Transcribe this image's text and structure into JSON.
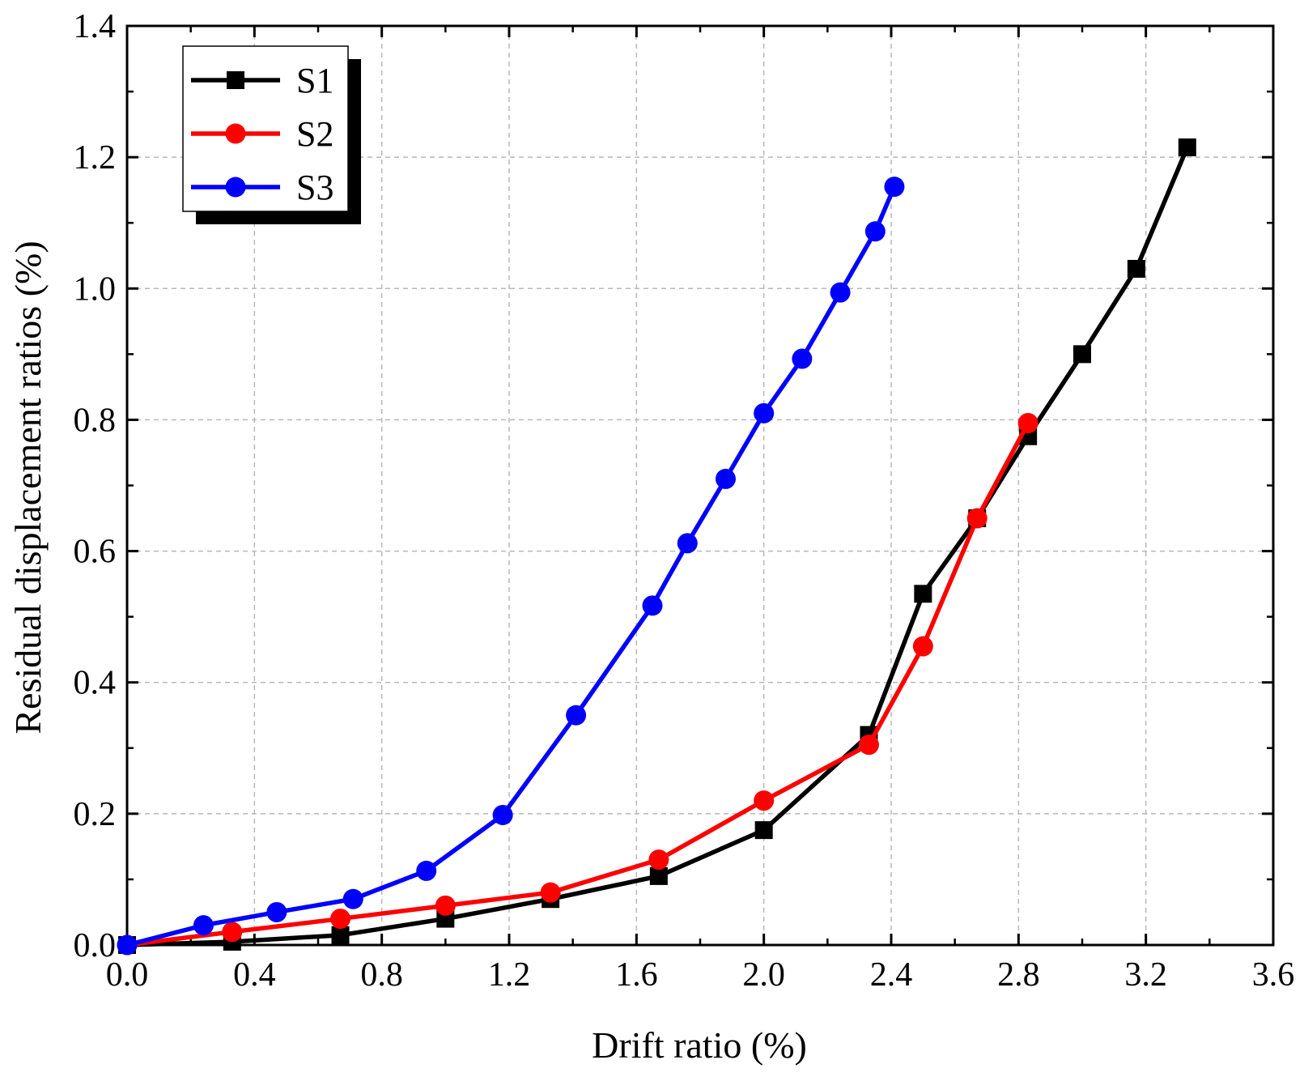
{
  "chart_data": {
    "type": "line",
    "title": "",
    "xlabel": "Drift ratio (%)",
    "ylabel": "Residual displacement ratios (%)",
    "xlim": [
      0.0,
      3.6
    ],
    "ylim": [
      0.0,
      1.4
    ],
    "xticks": [
      "0.0",
      "0.4",
      "0.8",
      "1.2",
      "1.6",
      "2.0",
      "2.4",
      "2.8",
      "3.2",
      "3.6"
    ],
    "yticks": [
      "0.0",
      "0.2",
      "0.4",
      "0.6",
      "0.8",
      "1.0",
      "1.2",
      "1.4"
    ],
    "grid": true,
    "legend_position": "top-left",
    "series": [
      {
        "name": "S1",
        "color": "#000000",
        "marker": "square",
        "points": [
          [
            0.0,
            0.0
          ],
          [
            0.33,
            0.005
          ],
          [
            0.67,
            0.015
          ],
          [
            1.0,
            0.04
          ],
          [
            1.33,
            0.07
          ],
          [
            1.67,
            0.105
          ],
          [
            2.0,
            0.175
          ],
          [
            2.33,
            0.32
          ],
          [
            2.5,
            0.535
          ],
          [
            2.67,
            0.65
          ],
          [
            2.83,
            0.775
          ],
          [
            3.0,
            0.9
          ],
          [
            3.17,
            1.03
          ],
          [
            3.33,
            1.215
          ]
        ]
      },
      {
        "name": "S2",
        "color": "#ff0000",
        "marker": "circle",
        "points": [
          [
            0.0,
            0.0
          ],
          [
            0.33,
            0.02
          ],
          [
            0.67,
            0.04
          ],
          [
            1.0,
            0.06
          ],
          [
            1.33,
            0.08
          ],
          [
            1.67,
            0.13
          ],
          [
            2.0,
            0.22
          ],
          [
            2.33,
            0.305
          ],
          [
            2.5,
            0.455
          ],
          [
            2.67,
            0.65
          ],
          [
            2.83,
            0.795
          ]
        ]
      },
      {
        "name": "S3",
        "color": "#0000ff",
        "marker": "circle",
        "points": [
          [
            0.0,
            0.0
          ],
          [
            0.24,
            0.03
          ],
          [
            0.47,
            0.05
          ],
          [
            0.71,
            0.07
          ],
          [
            0.94,
            0.113
          ],
          [
            1.18,
            0.198
          ],
          [
            1.41,
            0.35
          ],
          [
            1.65,
            0.517
          ],
          [
            1.76,
            0.612
          ],
          [
            1.88,
            0.71
          ],
          [
            2.0,
            0.81
          ],
          [
            2.12,
            0.893
          ],
          [
            2.24,
            0.994
          ],
          [
            2.35,
            1.087
          ],
          [
            2.41,
            1.155
          ]
        ]
      }
    ]
  }
}
